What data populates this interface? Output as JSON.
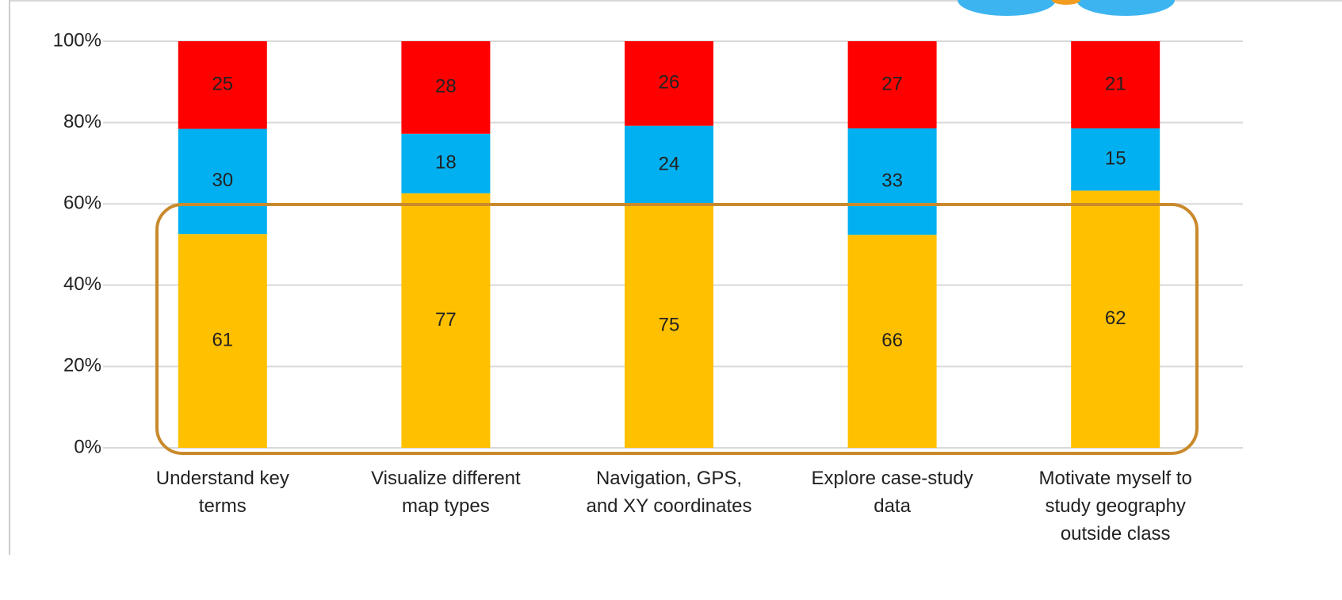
{
  "chart_data": {
    "type": "bar",
    "stack": "percent",
    "categories": [
      [
        "Understand key",
        "terms"
      ],
      [
        "Visualize different",
        "map types"
      ],
      [
        "Navigation, GPS,",
        "and XY coordinates"
      ],
      [
        "Explore case-study",
        "data"
      ],
      [
        "Motivate myself to",
        "study geography",
        "outside class"
      ]
    ],
    "series": [
      {
        "color": "#ffc000",
        "values": [
          61,
          77,
          75,
          66,
          62
        ]
      },
      {
        "color": "#00b0f0",
        "values": [
          30,
          18,
          24,
          33,
          15
        ]
      },
      {
        "color": "#ff0000",
        "values": [
          25,
          28,
          26,
          27,
          21
        ]
      }
    ],
    "ylim": [
      0,
      100
    ],
    "yticks": [
      {
        "value": 0,
        "label": "0%"
      },
      {
        "value": 20,
        "label": "20%"
      },
      {
        "value": 40,
        "label": "40%"
      },
      {
        "value": 60,
        "label": "60%"
      },
      {
        "value": 80,
        "label": "80%"
      },
      {
        "value": 100,
        "label": "100%"
      }
    ],
    "grid": true
  }
}
